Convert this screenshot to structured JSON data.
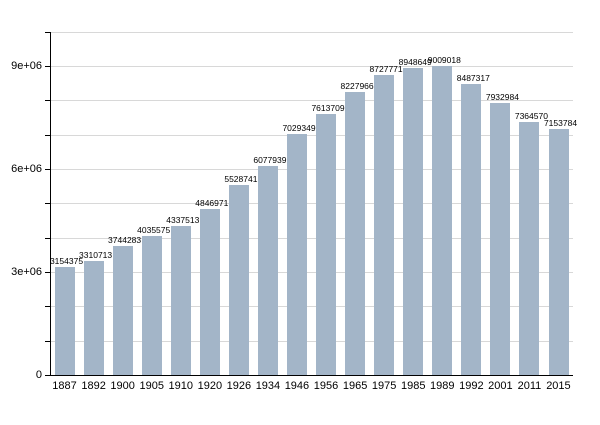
{
  "chart_data": {
    "type": "bar",
    "title": "",
    "xlabel": "",
    "ylabel": "",
    "categories": [
      "1887",
      "1892",
      "1900",
      "1905",
      "1910",
      "1920",
      "1926",
      "1934",
      "1946",
      "1956",
      "1965",
      "1975",
      "1985",
      "1989",
      "1992",
      "2001",
      "2011",
      "2015"
    ],
    "values": [
      3154375,
      3310713,
      3744283,
      4035575,
      4337513,
      4846971,
      5528741,
      6077939,
      7029349,
      7613709,
      8227966,
      8727771,
      8948649,
      9009018,
      8487317,
      7932984,
      7364570,
      7153784
    ],
    "value_labels": [
      "3154375",
      "3310713",
      "3744283",
      "4035575",
      "4337513",
      "4846971",
      "5528741",
      "6077939",
      "7029349",
      "7613709",
      "8227966",
      "8727771",
      "8948649",
      "9009018",
      "8487317",
      "7932984",
      "7364570",
      "7153784"
    ],
    "ylim": [
      0,
      10000000
    ],
    "grid": true,
    "grid_step": 1000000,
    "tick_step": 1000000,
    "y_ticks": [
      {
        "value": 0,
        "label": "0"
      },
      {
        "value": 3000000,
        "label": "3e+06"
      },
      {
        "value": 6000000,
        "label": "6e+06"
      },
      {
        "value": 9000000,
        "label": "9e+06"
      }
    ],
    "legend": null,
    "colors": {
      "bar_fill": "#a3b5c8",
      "grid_line": "#d8d8d8",
      "axis_line": "#000000",
      "text": "#000000"
    }
  }
}
